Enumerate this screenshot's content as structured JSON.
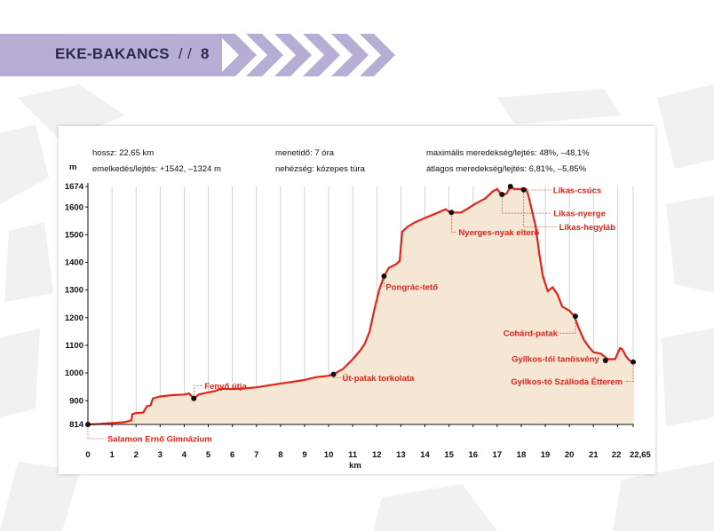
{
  "header": {
    "title": "EKE-BAKANCS",
    "separator": "/ /",
    "page_number": "8",
    "band_color": "#b7aed6",
    "chevron_color": "#b7aed6"
  },
  "info": {
    "length": "hossz: 22,65 km",
    "elevation": "emelkedés/lejtés: +1542, –1324 m",
    "time": "menetidő: 7 óra",
    "difficulty": "nehézség: közepes túra",
    "max_gradient": "maximális meredekség/lejtés: 48%, –48,1%",
    "avg_gradient": "átlagos meredekség/lejtés: 6,81%, –5,85%"
  },
  "chart_data": {
    "type": "area",
    "title": "",
    "xlabel": "km",
    "ylabel": "m",
    "xlim": [
      0,
      22.65
    ],
    "ylim": [
      814,
      1674
    ],
    "x_ticks": [
      0,
      1,
      2,
      3,
      4,
      5,
      6,
      7,
      8,
      9,
      10,
      11,
      12,
      13,
      14,
      15,
      16,
      17,
      18,
      19,
      20,
      21,
      22,
      22.65
    ],
    "x_tick_labels": [
      "0",
      "1",
      "2",
      "3",
      "4",
      "5",
      "6",
      "7",
      "8",
      "9",
      "10",
      "11",
      "12",
      "13",
      "14",
      "15",
      "16",
      "17",
      "18",
      "19",
      "20",
      "21",
      "22",
      "22,65"
    ],
    "y_ticks": [
      814,
      900,
      1000,
      1100,
      1200,
      1300,
      1400,
      1500,
      1600,
      1674
    ],
    "y_tick_labels": [
      "814",
      "900",
      "1000",
      "1100",
      "1200",
      "1300",
      "1400",
      "1500",
      "1600",
      "1674"
    ],
    "grid": "vertical",
    "colors": {
      "line": "#e2231a",
      "fill": "#f6e6d4",
      "label": "#e2231a",
      "grid": "#c8c8c8"
    },
    "profile": [
      [
        0,
        814
      ],
      [
        0.5,
        816
      ],
      [
        1.0,
        819
      ],
      [
        1.5,
        822
      ],
      [
        1.8,
        828
      ],
      [
        1.85,
        852
      ],
      [
        2.0,
        855
      ],
      [
        2.3,
        857
      ],
      [
        2.45,
        880
      ],
      [
        2.6,
        883
      ],
      [
        2.7,
        908
      ],
      [
        3.0,
        915
      ],
      [
        3.5,
        920
      ],
      [
        4.0,
        922
      ],
      [
        4.2,
        926
      ],
      [
        4.4,
        908
      ],
      [
        4.6,
        922
      ],
      [
        5.0,
        930
      ],
      [
        5.3,
        935
      ],
      [
        5.5,
        943
      ],
      [
        6.0,
        942
      ],
      [
        6.5,
        944
      ],
      [
        7.0,
        948
      ],
      [
        7.5,
        955
      ],
      [
        8.0,
        962
      ],
      [
        8.5,
        968
      ],
      [
        9.0,
        975
      ],
      [
        9.5,
        985
      ],
      [
        10.0,
        990
      ],
      [
        10.3,
        1000
      ],
      [
        10.6,
        1015
      ],
      [
        11.0,
        1050
      ],
      [
        11.3,
        1080
      ],
      [
        11.5,
        1105
      ],
      [
        11.7,
        1150
      ],
      [
        11.9,
        1230
      ],
      [
        12.1,
        1300
      ],
      [
        12.3,
        1350
      ],
      [
        12.5,
        1380
      ],
      [
        12.8,
        1393
      ],
      [
        12.95,
        1405
      ],
      [
        13.05,
        1510
      ],
      [
        13.3,
        1530
      ],
      [
        13.6,
        1545
      ],
      [
        14.0,
        1560
      ],
      [
        14.5,
        1578
      ],
      [
        14.85,
        1592
      ],
      [
        15.0,
        1583
      ],
      [
        15.2,
        1580
      ],
      [
        15.5,
        1580
      ],
      [
        15.8,
        1595
      ],
      [
        16.1,
        1612
      ],
      [
        16.5,
        1630
      ],
      [
        16.8,
        1655
      ],
      [
        17.0,
        1665
      ],
      [
        17.2,
        1640
      ],
      [
        17.4,
        1650
      ],
      [
        17.55,
        1674
      ],
      [
        17.7,
        1665
      ],
      [
        18.0,
        1665
      ],
      [
        18.2,
        1665
      ],
      [
        18.3,
        1640
      ],
      [
        18.6,
        1530
      ],
      [
        18.75,
        1430
      ],
      [
        18.9,
        1350
      ],
      [
        19.1,
        1295
      ],
      [
        19.3,
        1310
      ],
      [
        19.5,
        1285
      ],
      [
        19.7,
        1240
      ],
      [
        20.0,
        1225
      ],
      [
        20.2,
        1205
      ],
      [
        20.4,
        1160
      ],
      [
        20.6,
        1120
      ],
      [
        20.8,
        1095
      ],
      [
        21.0,
        1075
      ],
      [
        21.3,
        1070
      ],
      [
        21.6,
        1050
      ],
      [
        21.9,
        1050
      ],
      [
        22.0,
        1070
      ],
      [
        22.1,
        1090
      ],
      [
        22.2,
        1085
      ],
      [
        22.35,
        1060
      ],
      [
        22.5,
        1045
      ],
      [
        22.65,
        1040
      ]
    ],
    "points": [
      {
        "name": "Salamon Ernő Gimnázium",
        "x": 0,
        "y": 814
      },
      {
        "name": "Fenyő útja",
        "x": 4.4,
        "y": 908
      },
      {
        "name": "Út-patak torkolata",
        "x": 10.2,
        "y": 995
      },
      {
        "name": "Pongrác-tető",
        "x": 12.3,
        "y": 1350
      },
      {
        "name": "Nyerges-nyak elterő",
        "x": 15.1,
        "y": 1580
      },
      {
        "name": "Likas-csúcs",
        "x": 17.55,
        "y": 1674
      },
      {
        "name": "Likas-nyerge",
        "x": 17.2,
        "y": 1645
      },
      {
        "name": "Likas-hegyláb",
        "x": 18.1,
        "y": 1662
      },
      {
        "name": "Cohárd-patak",
        "x": 20.25,
        "y": 1205
      },
      {
        "name": "Gyilkos-tói tanösvény",
        "x": 21.5,
        "y": 1045
      },
      {
        "name": "Gyilkos-tó Szálloda Étterem",
        "x": 22.65,
        "y": 1040
      }
    ]
  }
}
